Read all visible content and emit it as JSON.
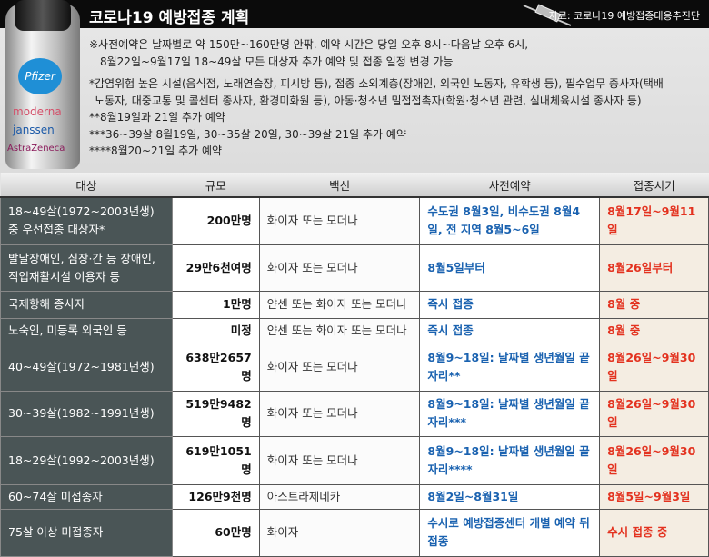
{
  "header": {
    "title": "코로나19 예방접종 계획",
    "source": "자료: 코로나19 예방접종대응추진단"
  },
  "vial_brands": [
    "Pfizer",
    "moderna",
    "janssen",
    "AstraZeneca"
  ],
  "notes": [
    "※사전예약은 날짜별로 약 150만~160만명 안팎. 예약 시간은 당일 오후 8시~다음날 오후 6시,",
    "  8월22일~9월17일 18~49살 모든 대상자 추가 예약 및 접종 일정 변경 가능",
    "*감염위험 높은 시설(음식점, 노래연습장, 피시방 등), 접종 소외계층(장애인, 외국인 노동자, 유학생 등), 필수업무 종사자(택배",
    " 노동자, 대중교통 및 콜센터 종사자, 환경미화원 등), 아동·청소년 밀접접촉자(학원·청소년 관련, 실내체육시설 종사자 등)",
    "**8월19일과 21일 추가 예약",
    "***36~39살 8월19일, 30~35살 20일, 30~39살 21일 추가 예약",
    "****8월20~21일 추가 예약"
  ],
  "table": {
    "headers": [
      "대상",
      "규모",
      "백신",
      "사전예약",
      "접종시기"
    ],
    "rows": [
      {
        "target": "18~49살(1972~2003년생) 중 우선접종 대상자*",
        "scale": "200만명",
        "vaccine": "화이자 또는 모더나",
        "reservation": "수도권 8월3일, 비수도권 8월4일, 전 지역 8월5~6일",
        "period": "8월17일~9월11일"
      },
      {
        "target": "발달장애인, 심장·간 등 장애인, 직업재활시설 이용자 등",
        "scale": "29만6천여명",
        "vaccine": "화이자 또는 모더나",
        "reservation": "8월5일부터",
        "period": "8월26일부터"
      },
      {
        "target": "국제항해 종사자",
        "scale": "1만명",
        "vaccine": "얀센 또는 화이자 또는 모더나",
        "reservation": "즉시 접종",
        "period": "8월 중"
      },
      {
        "target": "노숙인, 미등록 외국인 등",
        "scale": "미정",
        "vaccine": "얀센 또는 화이자 또는 모더나",
        "reservation": "즉시 접종",
        "period": "8월 중"
      },
      {
        "target": "40~49살(1972~1981년생)",
        "scale": "638만2657명",
        "vaccine": "화이자 또는 모더나",
        "reservation": "8월9~18일: 날짜별 생년월일 끝자리**",
        "period": "8월26일~9월30일"
      },
      {
        "target": "30~39살(1982~1991년생)",
        "scale": "519만9482명",
        "vaccine": "화이자 또는 모더나",
        "reservation": "8월9~18일: 날짜별 생년월일 끝자리***",
        "period": "8월26일~9월30일"
      },
      {
        "target": "18~29살(1992~2003년생)",
        "scale": "619만1051명",
        "vaccine": "화이자 또는 모더나",
        "reservation": "8월9~18일: 날짜별 생년월일 끝자리****",
        "period": "8월26일~9월30일"
      },
      {
        "target": "60~74살 미접종자",
        "scale": "126만9천명",
        "vaccine": "아스트라제네카",
        "reservation": "8월2일~8월31일",
        "period": "8월5일~9월3일"
      },
      {
        "target": "75살 이상 미접종자",
        "scale": "60만명",
        "vaccine": "화이자",
        "reservation": "수시로 예방접종센터 개별 예약 뒤 접종",
        "period": "수시 접종 중"
      }
    ]
  },
  "colors": {
    "target_bg": "#4a5556",
    "reservation_text": "#1a62b0",
    "period_text": "#e3321f",
    "period_bg": "#f4ede2"
  }
}
